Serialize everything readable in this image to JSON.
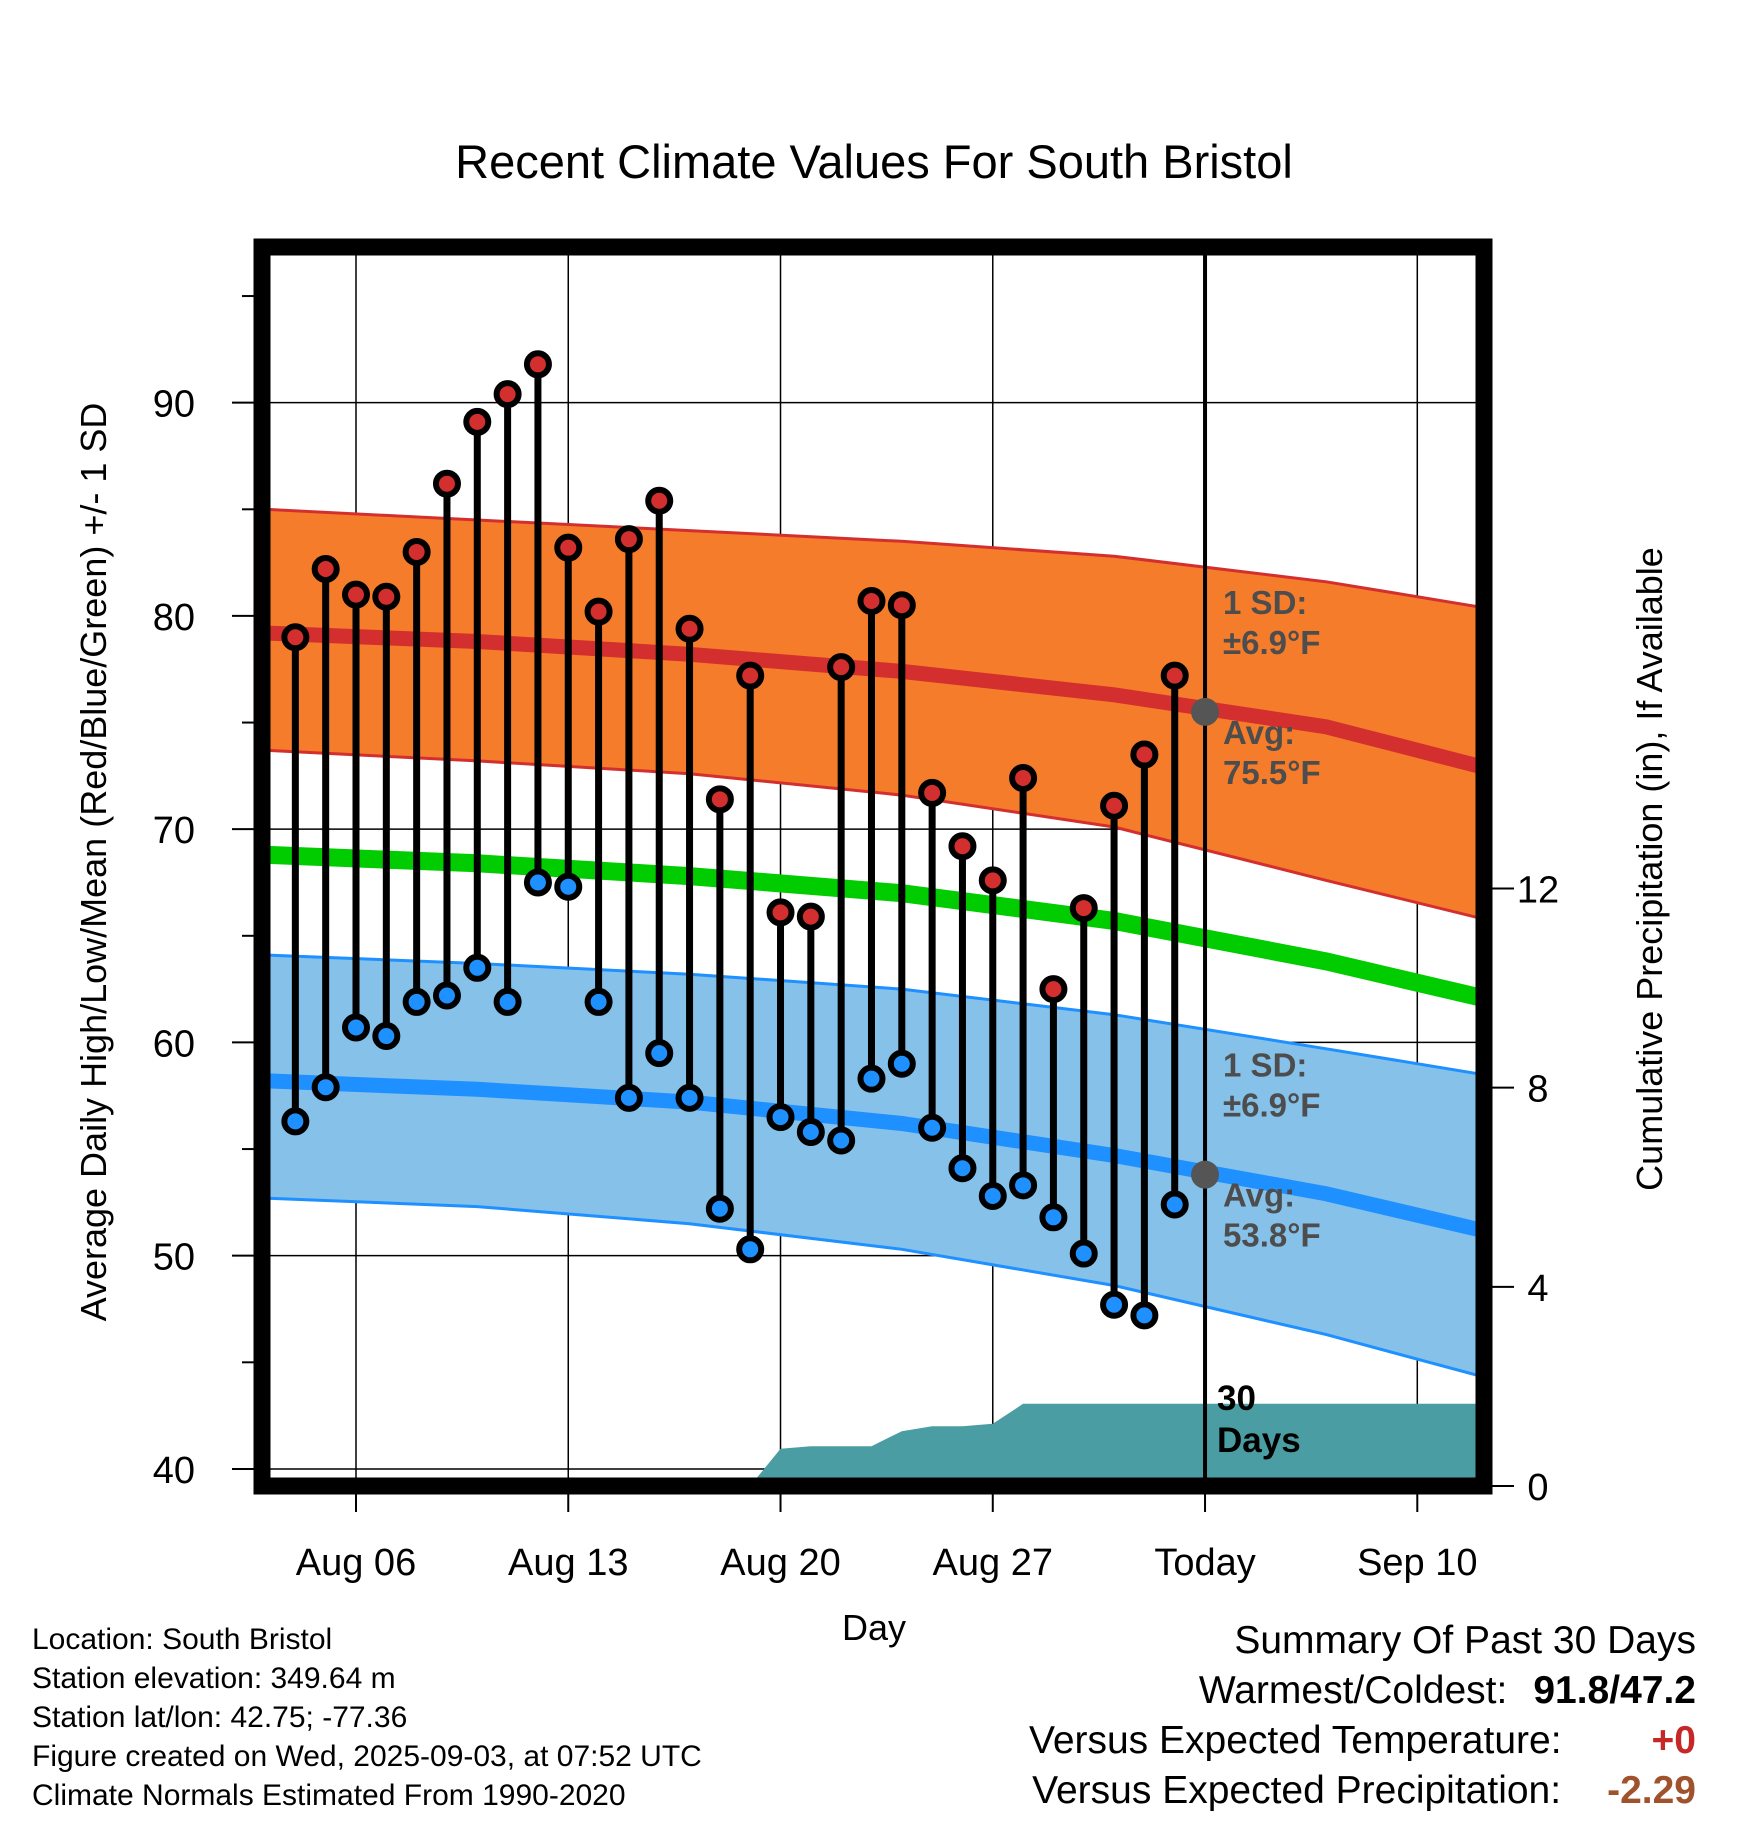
{
  "info": {
    "location": "Location: South Bristol",
    "elevation": "Station elevation: 349.64 m",
    "latlon": "Station lat/lon: 42.75; -77.36",
    "created": "Figure created on Wed, 2025-09-03, at 07:52 UTC",
    "normals": "Climate Normals Estimated From 1990-2020"
  },
  "summary": {
    "heading": "Summary Of Past 30 Days",
    "warm_cold_label": "Warmest/Coldest:",
    "warm_cold_value": "91.8/47.2",
    "temp_label": "Versus Expected Temperature:",
    "temp_value": "+0",
    "precip_label": "Versus Expected Precipitation:",
    "precip_value": "-2.29",
    "colors": {
      "temp_value": "#c62828",
      "precip_value": "#a0522d"
    }
  },
  "chart_data": {
    "type": "line",
    "title": "Recent Climate Values For South Bristol",
    "xlabel": "Day",
    "ylabel": "Average Daily High/Low/Mean (Red/Blue/Green) +/- 1 SD",
    "y2label": "Cumulative Precipitation (in), If Available",
    "ylim": [
      39.2,
      97.3
    ],
    "y2lim": [
      0,
      24
    ],
    "xlim_days_from_aug06": [
      -3.1,
      37.2
    ],
    "x_tick_labels": [
      "Aug 06",
      "Aug 13",
      "Aug 20",
      "Aug 27",
      "Today",
      "Sep 10"
    ],
    "x_tick_dates": [
      "2025-08-06",
      "2025-08-13",
      "2025-08-20",
      "2025-08-27",
      "2025-09-03",
      "2025-09-10"
    ],
    "y_ticks": [
      40,
      50,
      60,
      70,
      80,
      90
    ],
    "y2_ticks": [
      0,
      4,
      8,
      12
    ],
    "grid": true,
    "today": "2025-09-03",
    "today_marker_label": [
      "30",
      "Days"
    ],
    "normals": {
      "x_dates": [
        "2025-08-03",
        "2025-08-10",
        "2025-08-17",
        "2025-08-24",
        "2025-08-31",
        "2025-09-07",
        "2025-09-13"
      ],
      "high_avg": [
        79.2,
        78.8,
        78.2,
        77.4,
        76.3,
        74.8,
        72.6
      ],
      "high_upper": [
        85.0,
        84.5,
        84.0,
        83.5,
        82.8,
        81.6,
        80.2
      ],
      "high_lower": [
        73.7,
        73.2,
        72.6,
        71.6,
        70.1,
        67.6,
        65.5
      ],
      "mean_avg": [
        68.8,
        68.4,
        67.8,
        67.0,
        65.7,
        63.8,
        61.8
      ],
      "low_avg": [
        58.2,
        57.8,
        57.2,
        56.2,
        54.7,
        52.9,
        50.9
      ],
      "low_upper": [
        64.1,
        63.7,
        63.2,
        62.5,
        61.3,
        59.7,
        58.3
      ],
      "low_lower": [
        52.7,
        52.3,
        51.5,
        50.3,
        48.6,
        46.3,
        44.0
      ],
      "colors": {
        "high": "#d32f2f",
        "high_band": "#f57c2a",
        "mean": "#00cc00",
        "low": "#1e90ff",
        "low_band": "#85c1e9"
      }
    },
    "annotations": {
      "high_sd": [
        "1 SD:",
        "±6.9°F"
      ],
      "high_avg": [
        "Avg:",
        "75.5°F"
      ],
      "low_sd": [
        "1 SD:",
        "±6.9°F"
      ],
      "low_avg": [
        "Avg:",
        "53.8°F"
      ],
      "today_high_avg": 75.5,
      "today_low_avg": 53.8
    },
    "dates": [
      "2025-08-04",
      "2025-08-05",
      "2025-08-06",
      "2025-08-07",
      "2025-08-08",
      "2025-08-09",
      "2025-08-10",
      "2025-08-11",
      "2025-08-12",
      "2025-08-13",
      "2025-08-14",
      "2025-08-15",
      "2025-08-16",
      "2025-08-17",
      "2025-08-18",
      "2025-08-19",
      "2025-08-20",
      "2025-08-21",
      "2025-08-22",
      "2025-08-23",
      "2025-08-24",
      "2025-08-25",
      "2025-08-26",
      "2025-08-27",
      "2025-08-28",
      "2025-08-29",
      "2025-08-30",
      "2025-08-31",
      "2025-09-01",
      "2025-09-02"
    ],
    "series": [
      {
        "name": "High",
        "color": "#d32f2f",
        "values": [
          79.0,
          82.2,
          81.0,
          80.9,
          83.0,
          86.2,
          89.1,
          90.4,
          91.8,
          83.2,
          80.2,
          83.6,
          85.4,
          79.4,
          71.4,
          77.2,
          66.1,
          65.9,
          77.6,
          80.7,
          80.5,
          71.7,
          69.2,
          67.6,
          72.4,
          62.5,
          66.3,
          71.1,
          73.5,
          77.2
        ]
      },
      {
        "name": "Low",
        "color": "#1e90ff",
        "values": [
          56.3,
          57.9,
          60.7,
          60.3,
          61.9,
          62.2,
          63.5,
          61.9,
          67.5,
          67.3,
          61.9,
          57.4,
          59.5,
          57.4,
          52.2,
          50.3,
          56.5,
          55.8,
          55.4,
          58.3,
          59.0,
          56.0,
          54.1,
          52.8,
          53.3,
          51.8,
          50.1,
          47.7,
          47.2,
          52.4
        ]
      }
    ],
    "precip": {
      "color": "#4a9ea3",
      "dates": [
        "2025-08-19",
        "2025-08-20",
        "2025-08-21",
        "2025-08-22",
        "2025-08-23",
        "2025-08-24",
        "2025-08-25",
        "2025-08-26",
        "2025-08-27",
        "2025-08-28",
        "2025-08-29",
        "2025-08-30",
        "2025-08-31",
        "2025-09-01",
        "2025-09-02",
        "2025-09-03",
        "2025-09-13"
      ],
      "values": [
        0,
        0.75,
        0.8,
        0.8,
        0.8,
        1.1,
        1.2,
        1.2,
        1.25,
        1.65,
        1.65,
        1.65,
        1.65,
        1.65,
        1.65,
        1.65,
        1.65
      ]
    }
  }
}
